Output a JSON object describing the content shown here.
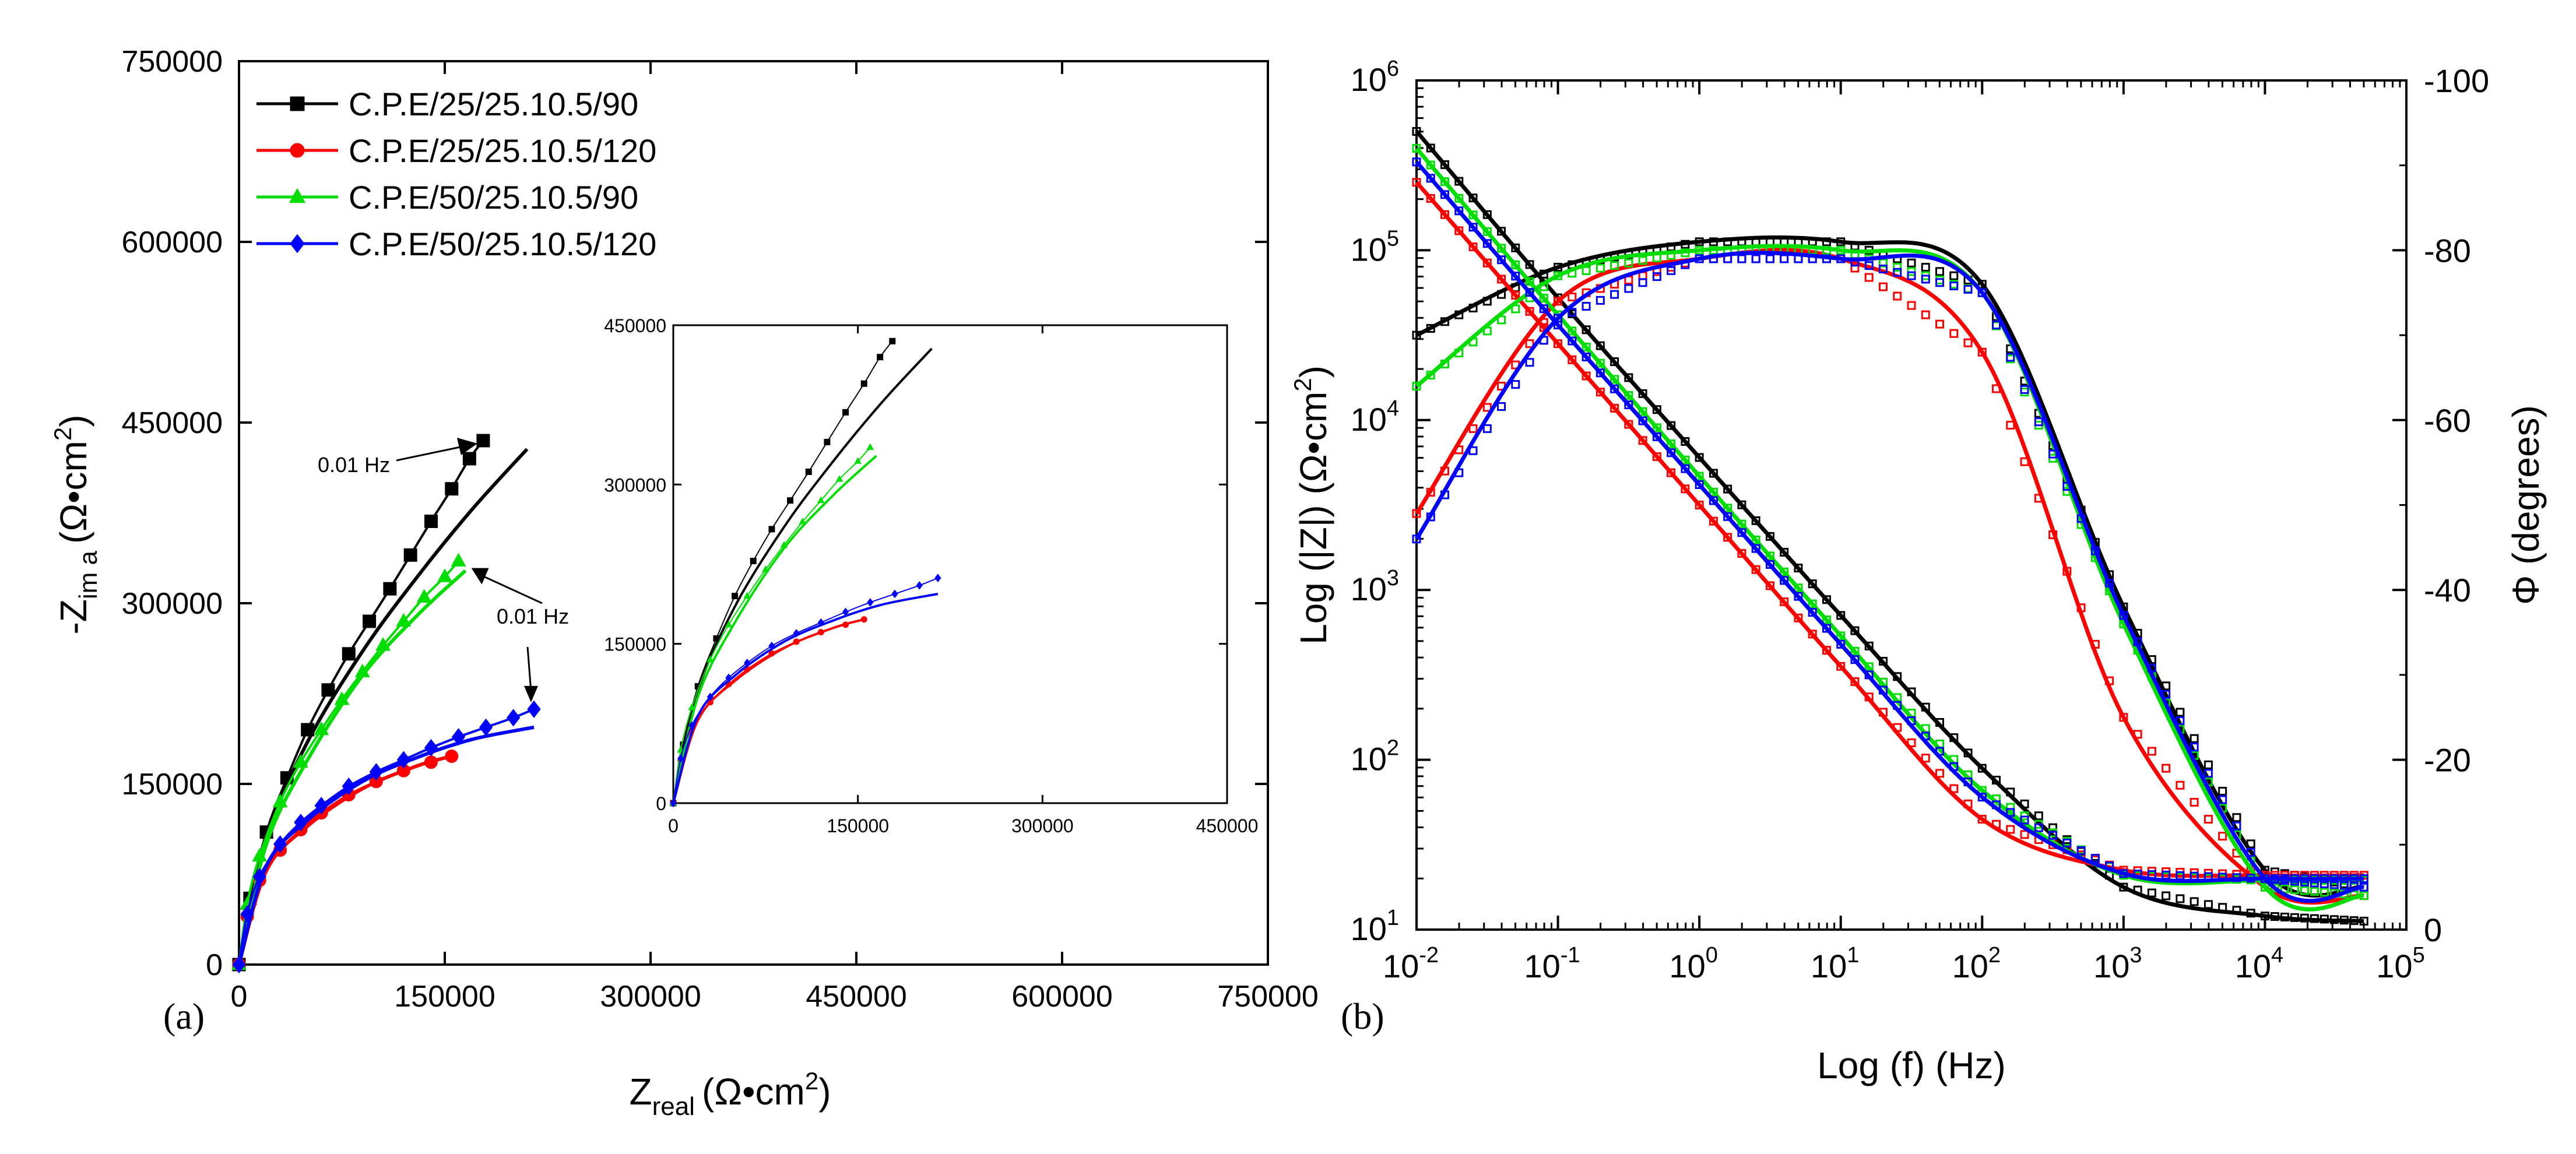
{
  "chart_data": [
    {
      "type": "scatter",
      "panel": "(a)",
      "title": "",
      "xlabel_main": "Z",
      "xlabel_sub": "real",
      "xlabel_unit": "(Ω•cm",
      "xlabel_sup": "2",
      "xlabel_close": ")",
      "ylabel_main": "-Z",
      "ylabel_sub": "im a",
      "ylabel_unit": "(Ω•cm",
      "ylabel_sup": "2",
      "ylabel_close": ")",
      "xlim": [
        0,
        750000
      ],
      "ylim": [
        0,
        750000
      ],
      "xticks": [
        0,
        150000,
        300000,
        450000,
        600000,
        750000
      ],
      "yticks": [
        0,
        150000,
        300000,
        450000,
        600000,
        750000
      ],
      "xtick_labels": [
        "0",
        "150000",
        "300000",
        "450000",
        "600000",
        "750000"
      ],
      "ytick_labels": [
        "0",
        "150000",
        "300000",
        "450000",
        "600000",
        "750000"
      ],
      "legend_position": "top-left",
      "series": [
        {
          "name": "C.P.E/25/25.10.5/90",
          "color": "#000000",
          "marker": "square",
          "x": [
            0,
            8000,
            20000,
            35000,
            50000,
            65000,
            80000,
            95000,
            110000,
            125000,
            140000,
            155000,
            168000,
            178000
          ],
          "y": [
            0,
            55000,
            110000,
            155000,
            195000,
            228000,
            258000,
            285000,
            312000,
            340000,
            368000,
            395000,
            420000,
            435000
          ],
          "fit_x": [
            0,
            20000,
            50000,
            90000,
            130000,
            170000,
            210000
          ],
          "fit_y": [
            0,
            105000,
            185000,
            260000,
            322000,
            378000,
            428000
          ]
        },
        {
          "name": "C.P.E/25/25.10.5/120",
          "color": "#ff0000",
          "marker": "circle",
          "x": [
            0,
            6000,
            15000,
            30000,
            45000,
            60000,
            80000,
            100000,
            120000,
            140000,
            155000
          ],
          "y": [
            0,
            40000,
            70000,
            95000,
            112000,
            126000,
            141000,
            152000,
            161000,
            168000,
            173000
          ],
          "fit_x": [
            0,
            20000,
            50000,
            90000,
            130000,
            155000
          ],
          "fit_y": [
            0,
            78000,
            115000,
            146000,
            165000,
            173000
          ]
        },
        {
          "name": "C.P.E/50/25.10.5/90",
          "color": "#00dd00",
          "marker": "triangle",
          "x": [
            0,
            6000,
            15000,
            30000,
            45000,
            60000,
            75000,
            90000,
            105000,
            120000,
            135000,
            150000,
            160000
          ],
          "y": [
            0,
            50000,
            90000,
            135000,
            168000,
            195000,
            220000,
            243000,
            265000,
            285000,
            305000,
            322000,
            335000
          ],
          "fit_x": [
            0,
            20000,
            50000,
            90000,
            130000,
            165000
          ],
          "fit_y": [
            0,
            100000,
            170000,
            240000,
            290000,
            327000
          ]
        },
        {
          "name": "C.P.E/50/25.10.5/120",
          "color": "#0000ff",
          "marker": "diamond",
          "x": [
            0,
            6000,
            15000,
            30000,
            45000,
            60000,
            80000,
            100000,
            120000,
            140000,
            160000,
            180000,
            200000,
            215000
          ],
          "y": [
            0,
            42000,
            73000,
            100000,
            118000,
            132000,
            148000,
            160000,
            170000,
            180000,
            189000,
            197000,
            205000,
            212000
          ],
          "fit_x": [
            0,
            20000,
            50000,
            90000,
            130000,
            170000,
            215000
          ],
          "fit_y": [
            0,
            82000,
            120000,
            152000,
            172000,
            187000,
            197000
          ]
        }
      ],
      "annotations": [
        {
          "text": "0.01 Hz",
          "target": "C.P.E/25/25.10.5/90"
        },
        {
          "text": "0.01 Hz",
          "target": "C.P.E/50/25.10.5/90"
        }
      ],
      "inset": {
        "xlim": [
          0,
          450000
        ],
        "ylim": [
          0,
          450000
        ],
        "xtick_labels": [
          "0",
          "150000",
          "300000",
          "450000"
        ],
        "ytick_labels": [
          "0",
          "150000",
          "300000",
          "450000"
        ]
      }
    },
    {
      "type": "line",
      "panel": "(b)",
      "xlabel": "Log (f) (Hz)",
      "ylabel_left": "Log (|Z|) (Ω•cm",
      "ylabel_left_sup": "2",
      "ylabel_left_close": ")",
      "ylabel_right": "Φ (degrees)",
      "x_log_exponents": [
        -2,
        -1,
        0,
        1,
        2,
        3,
        4,
        5
      ],
      "y_left_log_exponents": [
        1,
        2,
        3,
        4,
        5,
        6
      ],
      "y_right_ticks": [
        0,
        -20,
        -40,
        -60,
        -80,
        -100
      ],
      "y_right_tick_labels": [
        "0",
        "-20",
        "-40",
        "-60",
        "-80",
        "-100"
      ],
      "series": [
        {
          "name": "C.P.E/25/25.10.5/90",
          "color": "#000000",
          "log_f": [
            -2,
            -1,
            0,
            1,
            2,
            3,
            4,
            4.7
          ],
          "log_modZ": [
            5.7,
            4.72,
            3.78,
            2.85,
            1.95,
            1.25,
            1.08,
            1.05
          ],
          "phase": [
            -70,
            -78,
            -81,
            -81,
            -76,
            -38,
            -7,
            -5
          ]
        },
        {
          "name": "C.P.E/25/25.10.5/120",
          "color": "#ff0000",
          "log_f": [
            -2,
            -1,
            0,
            1,
            2,
            3,
            4,
            4.7
          ],
          "log_modZ": [
            5.4,
            4.45,
            3.5,
            2.55,
            1.65,
            1.35,
            1.32,
            1.32
          ],
          "phase": [
            -49,
            -74,
            -79,
            -79,
            -68,
            -25,
            -5,
            -4
          ]
        },
        {
          "name": "C.P.E/50/25.10.5/90",
          "color": "#00dd00",
          "log_f": [
            -2,
            -1,
            0,
            1,
            2,
            3,
            4,
            4.7
          ],
          "log_modZ": [
            5.6,
            4.62,
            3.67,
            2.73,
            1.82,
            1.32,
            1.29,
            1.29
          ],
          "phase": [
            -64,
            -77,
            -80,
            -80,
            -75,
            -36,
            -5,
            -4
          ]
        },
        {
          "name": "C.P.E/50/25.10.5/120",
          "color": "#0000ff",
          "log_f": [
            -2,
            -1,
            0,
            1,
            2,
            3,
            4,
            4.7
          ],
          "log_modZ": [
            5.52,
            4.56,
            3.62,
            2.68,
            1.78,
            1.33,
            1.3,
            1.3
          ],
          "phase": [
            -46,
            -72,
            -79,
            -79,
            -75,
            -37,
            -6,
            -5
          ]
        }
      ]
    }
  ]
}
